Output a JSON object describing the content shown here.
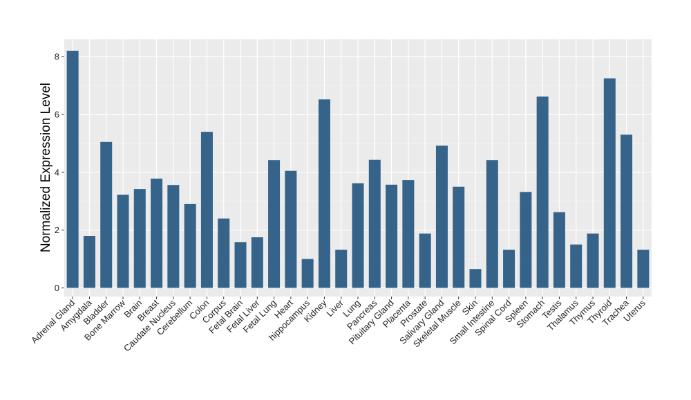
{
  "chart_data": {
    "type": "bar",
    "title": "",
    "xlabel": "",
    "ylabel": "Normalized Expression Level",
    "ylim": [
      -0.3,
      8.6
    ],
    "yticks": [
      0,
      2,
      4,
      6,
      8
    ],
    "grid": true,
    "bar_color": "#35638a",
    "panel_color": "#ebebeb",
    "categories": [
      "Adrenal Gland",
      "Amygdala",
      "Bladder",
      "Bone Marrow",
      "Brain",
      "Breast",
      "Caudate Nucleus",
      "Cerebellum",
      "Colon",
      "Corpus",
      "Fetal Brain",
      "Fetal Liver",
      "Fetal Lung",
      "Heart",
      "hippocampus",
      "Kidney",
      "Liver",
      "Lung",
      "Pancreas",
      "Pituitary Gland",
      "Placenta",
      "Prostate",
      "Salivary Gland",
      "Skeletal Muscle",
      "Skin",
      "Small Intestine",
      "Spinal Cord",
      "Spleen",
      "Stomach",
      "Testis",
      "Thalamus",
      "Thymus",
      "Thyroid",
      "Trachea",
      "Uterus"
    ],
    "values": [
      8.2,
      1.8,
      5.05,
      3.22,
      3.42,
      3.78,
      3.56,
      2.9,
      5.4,
      2.4,
      1.58,
      1.75,
      4.42,
      4.05,
      1.0,
      6.52,
      1.32,
      3.62,
      4.43,
      3.57,
      3.73,
      1.88,
      4.92,
      3.5,
      0.65,
      4.42,
      1.32,
      3.32,
      6.62,
      2.62,
      1.5,
      1.88,
      7.25,
      5.3,
      1.32
    ]
  }
}
